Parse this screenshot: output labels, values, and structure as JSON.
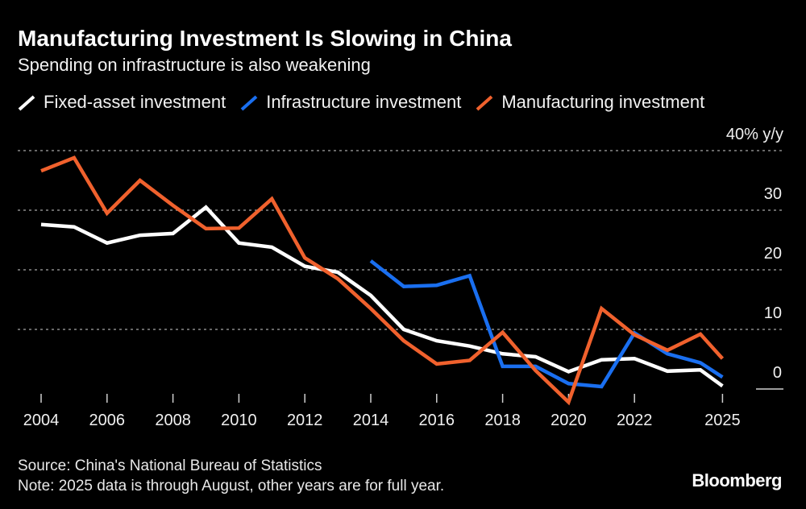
{
  "chart_data": {
    "type": "line",
    "title": "Manufacturing Investment Is Slowing in China",
    "subtitle": "Spending on infrastructure is also weakening",
    "y_unit_label": "40% y/y",
    "ylim": [
      -3,
      40
    ],
    "y_ticks": [
      0,
      10,
      20,
      30
    ],
    "x_tick_labels": [
      "2004",
      "2006",
      "2008",
      "2010",
      "2012",
      "2014",
      "2016",
      "2018",
      "2020",
      "2022",
      "2025"
    ],
    "grid": true,
    "legend_placement": "top-left",
    "x": [
      2004,
      2005,
      2006,
      2007,
      2008,
      2009,
      2010,
      2011,
      2012,
      2013,
      2014,
      2015,
      2016,
      2017,
      2018,
      2019,
      2020,
      2021,
      2022,
      2023,
      2024,
      2025
    ],
    "series": [
      {
        "name": "Fixed-asset investment",
        "color": "#ffffff",
        "values": [
          27.6,
          27.2,
          24.5,
          25.8,
          26.1,
          30.5,
          24.5,
          23.8,
          20.6,
          19.6,
          15.7,
          10.0,
          8.1,
          7.2,
          5.9,
          5.4,
          2.9,
          4.9,
          5.1,
          3.0,
          3.2,
          0.5
        ]
      },
      {
        "name": "Infrastructure investment",
        "color": "#1a6ff0",
        "values": [
          null,
          null,
          null,
          null,
          null,
          null,
          null,
          null,
          null,
          null,
          21.5,
          17.2,
          17.4,
          19.0,
          3.8,
          3.8,
          0.9,
          0.4,
          9.4,
          5.9,
          4.4,
          2.0
        ]
      },
      {
        "name": "Manufacturing investment",
        "color": "#f0612d",
        "values": [
          36.6,
          38.8,
          29.5,
          35.0,
          30.8,
          26.9,
          27.0,
          31.9,
          22.0,
          18.5,
          13.5,
          8.1,
          4.2,
          4.8,
          9.5,
          3.1,
          -2.2,
          13.5,
          9.1,
          6.5,
          9.2,
          5.1
        ]
      }
    ]
  },
  "footer": {
    "source": "Source: China's National Bureau of Statistics",
    "note": "Note: 2025 data is through August, other years are for full year."
  },
  "brand": "Bloomberg"
}
